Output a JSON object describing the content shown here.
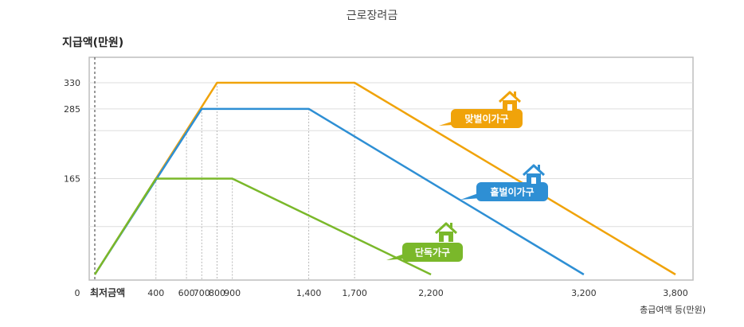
{
  "chart_data": {
    "type": "line",
    "title": "근로장려금",
    "ylabel": "지급액(만원)",
    "xlabel": "총급여액 등(만원)",
    "origin_label": "0",
    "min_wage_label": "최저금액",
    "xlim": [
      0,
      3800
    ],
    "ylim": [
      0,
      330
    ],
    "x_ticks": [
      {
        "value": 400,
        "label": "400"
      },
      {
        "value": 600,
        "label": "600"
      },
      {
        "value": 700,
        "label": "700"
      },
      {
        "value": 800,
        "label": "800"
      },
      {
        "value": 900,
        "label": "900"
      },
      {
        "value": 1400,
        "label": "1,400"
      },
      {
        "value": 1700,
        "label": "1,700"
      },
      {
        "value": 2200,
        "label": "2,200"
      },
      {
        "value": 3200,
        "label": "3,200"
      },
      {
        "value": 3800,
        "label": "3,800"
      }
    ],
    "y_ticks": [
      {
        "value": 165,
        "label": "165"
      },
      {
        "value": 285,
        "label": "285"
      },
      {
        "value": 330,
        "label": "330"
      }
    ],
    "grid": true,
    "series": [
      {
        "name": "맞벌이가구",
        "color": "#f0a30a",
        "x": [
          0,
          800,
          1700,
          3800
        ],
        "y": [
          0,
          330,
          330,
          0
        ]
      },
      {
        "name": "홑벌이가구",
        "color": "#2e8fd4",
        "x": [
          0,
          700,
          1400,
          3200
        ],
        "y": [
          0,
          285,
          285,
          0
        ]
      },
      {
        "name": "단독가구",
        "color": "#7ab82a",
        "x": [
          0,
          400,
          900,
          2200
        ],
        "y": [
          0,
          165,
          165,
          0
        ]
      }
    ]
  }
}
